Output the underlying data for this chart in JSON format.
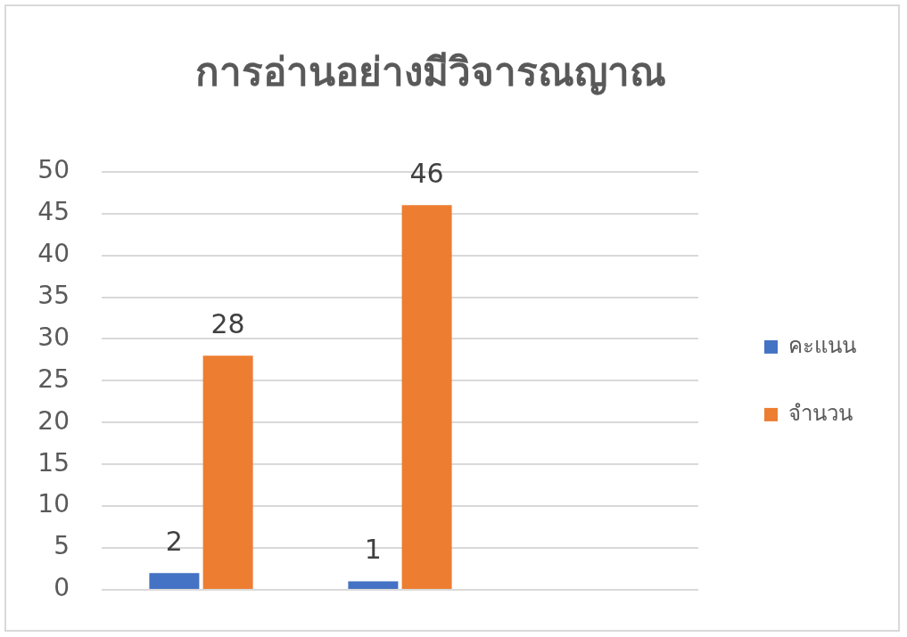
{
  "chart_data": {
    "type": "bar",
    "title": "การอ่านอย่างมีวิจารณญาณ",
    "categories": [
      null,
      null,
      null
    ],
    "series": [
      {
        "name": "คะแนน",
        "color": "#4472c4",
        "values": [
          2,
          1,
          null
        ]
      },
      {
        "name": "จำนวน",
        "color": "#ed7d31",
        "values": [
          28,
          46,
          null
        ]
      }
    ],
    "ylim": [
      0,
      50
    ],
    "yticks": [
      0,
      5,
      10,
      15,
      20,
      25,
      30,
      35,
      40,
      45,
      50
    ],
    "grid": "y",
    "legend": "right",
    "data_labels": true
  }
}
